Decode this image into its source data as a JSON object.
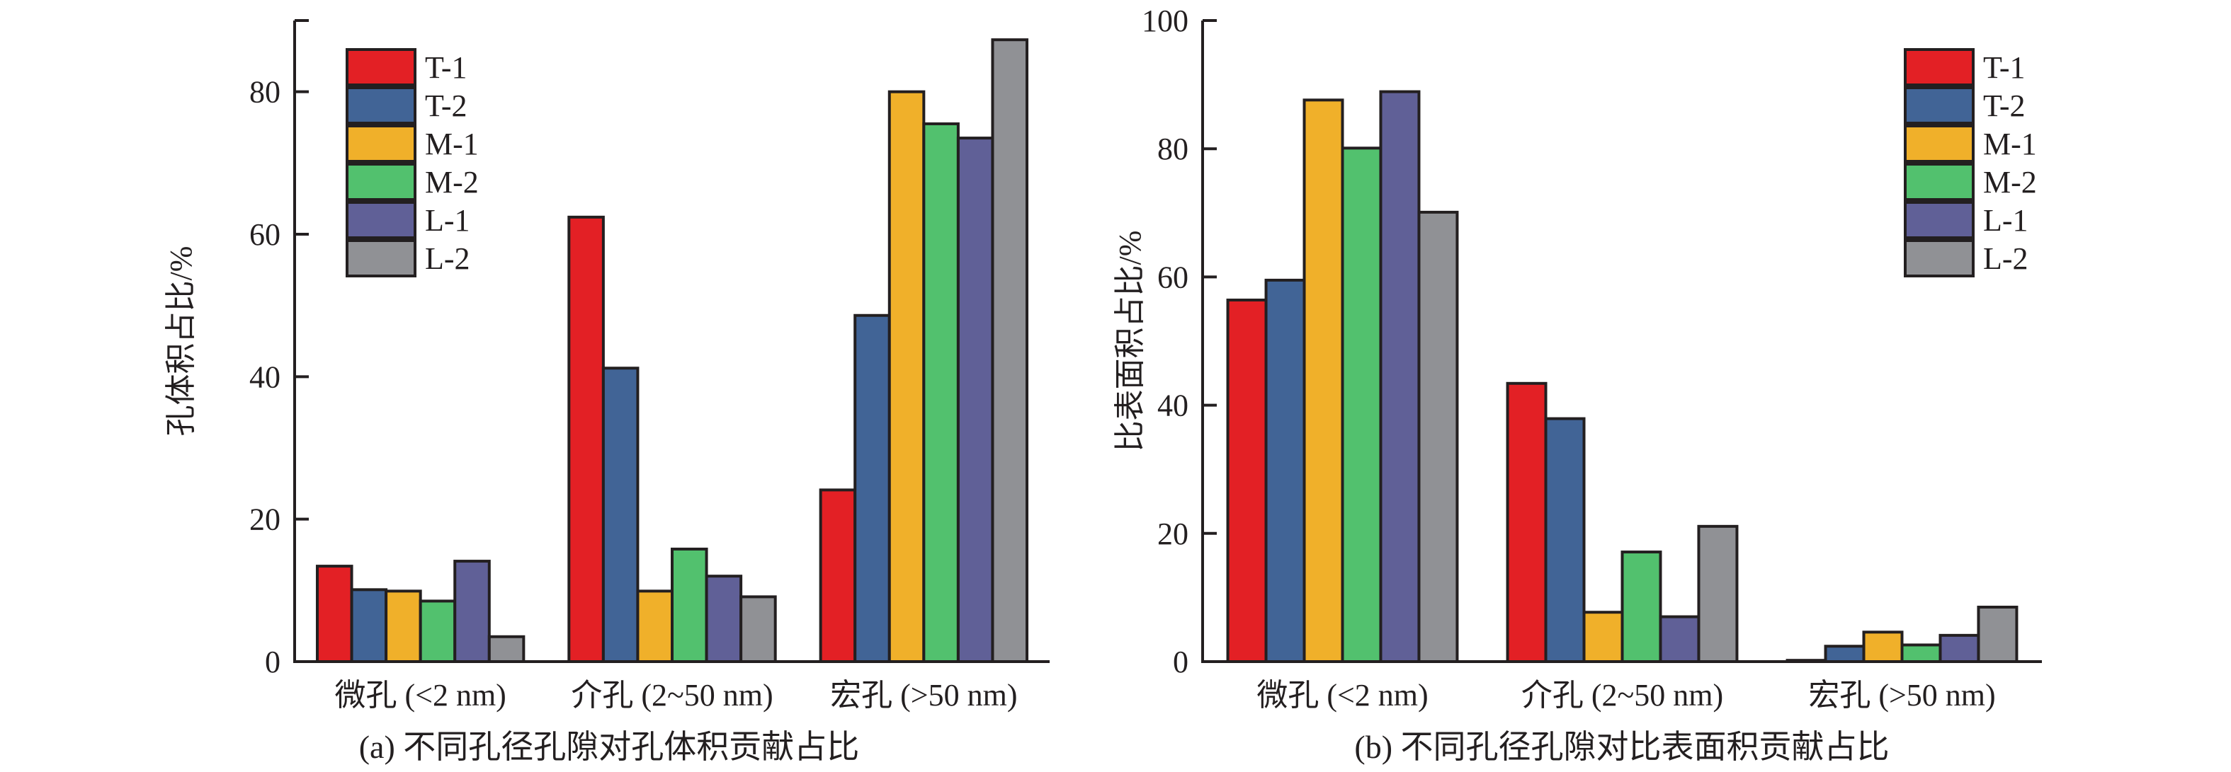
{
  "chart_data": [
    {
      "id": "a",
      "type": "bar",
      "title": "(a) 不同孔径孔隙对孔体积贡献占比",
      "xlabel": "",
      "ylabel": "孔体积占比/%",
      "ylim": [
        0,
        90
      ],
      "yticks": [
        0,
        20,
        40,
        60,
        80
      ],
      "grid": false,
      "legend_position": "top-left",
      "categories": [
        "微孔 (<2 nm)",
        "介孔 (2~50 nm)",
        "宏孔 (>50 nm)"
      ],
      "series": [
        {
          "name": "T-1",
          "color": "#e32025",
          "values": [
            13.4,
            62.4,
            24.1
          ]
        },
        {
          "name": "T-2",
          "color": "#416496",
          "values": [
            10.1,
            41.2,
            48.6
          ]
        },
        {
          "name": "M-1",
          "color": "#f0b02a",
          "values": [
            9.9,
            9.9,
            80.0
          ]
        },
        {
          "name": "M-2",
          "color": "#52c16e",
          "values": [
            8.5,
            15.8,
            75.5
          ]
        },
        {
          "name": "L-1",
          "color": "#606097",
          "values": [
            14.1,
            12.0,
            73.5
          ]
        },
        {
          "name": "L-2",
          "color": "#909195",
          "values": [
            3.5,
            9.1,
            87.3
          ]
        }
      ]
    },
    {
      "id": "b",
      "type": "bar",
      "title": "(b) 不同孔径孔隙对比表面积贡献占比",
      "xlabel": "",
      "ylabel": "比表面积占比/%",
      "ylim": [
        0,
        100
      ],
      "yticks": [
        0,
        20,
        40,
        60,
        80,
        100
      ],
      "grid": false,
      "legend_position": "top-right",
      "categories": [
        "微孔 (<2 nm)",
        "介孔 (2~50 nm)",
        "宏孔 (>50 nm)"
      ],
      "series": [
        {
          "name": "T-1",
          "color": "#e32025",
          "values": [
            56.4,
            43.4,
            0.2
          ]
        },
        {
          "name": "T-2",
          "color": "#416496",
          "values": [
            59.5,
            37.9,
            2.4
          ]
        },
        {
          "name": "M-1",
          "color": "#f0b02a",
          "values": [
            87.6,
            7.7,
            4.6
          ]
        },
        {
          "name": "M-2",
          "color": "#52c16e",
          "values": [
            80.1,
            17.1,
            2.6
          ]
        },
        {
          "name": "L-1",
          "color": "#606097",
          "values": [
            88.9,
            7.0,
            4.1
          ]
        },
        {
          "name": "L-2",
          "color": "#909195",
          "values": [
            70.1,
            21.1,
            8.5
          ]
        }
      ]
    }
  ]
}
